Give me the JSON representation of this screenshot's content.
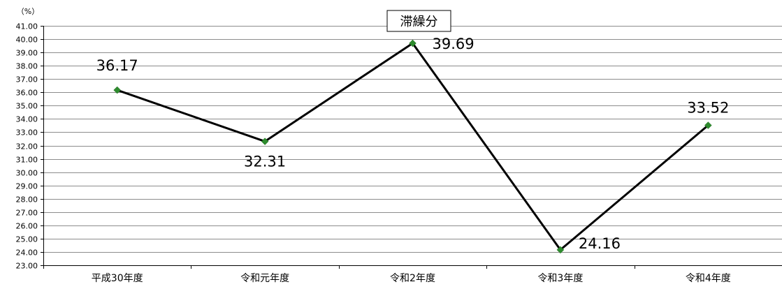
{
  "chart_data": {
    "type": "line",
    "title": "滞繰分",
    "unit_label": "（%）",
    "categories": [
      "平成30年度",
      "令和元年度",
      "令和2年度",
      "令和3年度",
      "令和4年度"
    ],
    "series": [
      {
        "values": [
          36.17,
          32.31,
          39.69,
          24.16,
          33.52
        ],
        "labels": [
          "36.17",
          "32.31",
          "39.69",
          "24.16",
          "33.52"
        ]
      }
    ],
    "y_ticks": [
      "23.00",
      "24.00",
      "25.00",
      "26.00",
      "27.00",
      "28.00",
      "29.00",
      "30.00",
      "31.00",
      "32.00",
      "33.00",
      "34.00",
      "35.00",
      "36.00",
      "37.00",
      "38.00",
      "39.00",
      "40.00",
      "41.00"
    ],
    "ylim": [
      23,
      41
    ],
    "grid": true,
    "legend": "none",
    "colors": {
      "line": "#000000",
      "marker": "#2e8b2e",
      "grid": "#8c8c8c",
      "axis": "#000000"
    }
  }
}
